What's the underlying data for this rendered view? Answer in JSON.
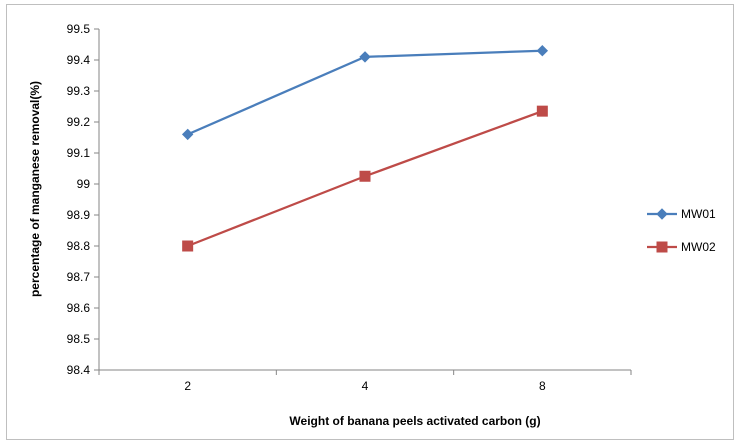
{
  "chart_data": {
    "type": "line",
    "title": "",
    "xlabel": "Weight of banana peels activated carbon (g)",
    "ylabel": "percentage of manganese removal(%)",
    "categories": [
      "2",
      "4",
      "8"
    ],
    "ylim": [
      98.4,
      99.5
    ],
    "ytick_step": 0.1,
    "ytick_labels": [
      "98.4",
      "98.5",
      "98.6",
      "98.7",
      "98.8",
      "98.9",
      "99",
      "99.1",
      "99.2",
      "99.3",
      "99.4",
      "99.5"
    ],
    "grid": false,
    "legend_position": "right",
    "series": [
      {
        "name": "MW01",
        "values": [
          99.16,
          99.41,
          99.43
        ],
        "color": "#4a7ebb",
        "marker": "diamond"
      },
      {
        "name": "MW02",
        "values": [
          98.8,
          99.025,
          99.235
        ],
        "color": "#be4b48",
        "marker": "square"
      }
    ]
  }
}
